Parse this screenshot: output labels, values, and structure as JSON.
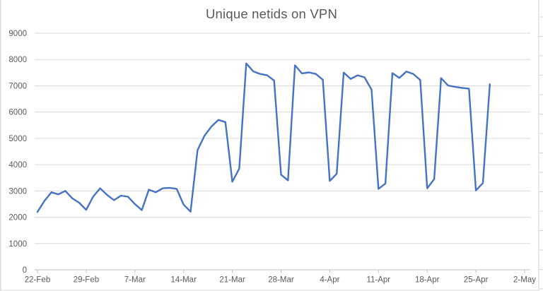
{
  "chart_data": {
    "type": "line",
    "title": "Unique netids on VPN",
    "legend": "none",
    "grid": "horizontal",
    "x_axis": {
      "tick_labels": [
        "22-Feb",
        "29-Feb",
        "7-Mar",
        "14-Mar",
        "21-Mar",
        "28-Mar",
        "4-Apr",
        "11-Apr",
        "18-Apr",
        "25-Apr",
        "2-May"
      ],
      "tick_day_indices": [
        0,
        7,
        14,
        21,
        28,
        35,
        42,
        49,
        56,
        63,
        70
      ],
      "interval_days": 7,
      "range_days": [
        0,
        70
      ]
    },
    "y_axis": {
      "tick_values": [
        0,
        1000,
        2000,
        3000,
        4000,
        5000,
        6000,
        7000,
        8000,
        9000
      ],
      "tick_labels": [
        "0",
        "1000",
        "2000",
        "3000",
        "4000",
        "5000",
        "6000",
        "7000",
        "8000",
        "9000"
      ],
      "min": 0,
      "max": 9000
    },
    "series": [
      {
        "name": "Unique netids on VPN",
        "color": "#4472C4",
        "dates": [
          "22-Feb",
          "23-Feb",
          "24-Feb",
          "25-Feb",
          "26-Feb",
          "27-Feb",
          "28-Feb",
          "29-Feb",
          "1-Mar",
          "2-Mar",
          "3-Mar",
          "4-Mar",
          "5-Mar",
          "6-Mar",
          "7-Mar",
          "8-Mar",
          "9-Mar",
          "10-Mar",
          "11-Mar",
          "12-Mar",
          "13-Mar",
          "14-Mar",
          "15-Mar",
          "16-Mar",
          "17-Mar",
          "18-Mar",
          "19-Mar",
          "20-Mar",
          "21-Mar",
          "22-Mar",
          "23-Mar",
          "24-Mar",
          "25-Mar",
          "26-Mar",
          "27-Mar",
          "28-Mar",
          "29-Mar",
          "30-Mar",
          "31-Mar",
          "1-Apr",
          "2-Apr",
          "3-Apr",
          "4-Apr",
          "5-Apr",
          "6-Apr",
          "7-Apr",
          "8-Apr",
          "9-Apr",
          "10-Apr",
          "11-Apr",
          "12-Apr",
          "13-Apr",
          "14-Apr",
          "15-Apr",
          "16-Apr",
          "17-Apr",
          "18-Apr",
          "19-Apr",
          "20-Apr",
          "21-Apr",
          "22-Apr",
          "23-Apr",
          "24-Apr",
          "25-Apr",
          "26-Apr",
          "27-Apr"
        ],
        "values": [
          2200,
          2620,
          2950,
          2870,
          3000,
          2720,
          2550,
          2280,
          2780,
          3100,
          2850,
          2650,
          2820,
          2780,
          2500,
          2270,
          3050,
          2950,
          3100,
          3120,
          3080,
          2480,
          2210,
          4550,
          5100,
          5450,
          5700,
          5620,
          3350,
          3850,
          7850,
          7550,
          7450,
          7400,
          7200,
          3620,
          3400,
          7780,
          7470,
          7510,
          7450,
          7230,
          3380,
          3650,
          7500,
          7260,
          7400,
          7320,
          6850,
          3080,
          3280,
          7480,
          7300,
          7540,
          7450,
          7220,
          3100,
          3450,
          7290,
          7010,
          6960,
          6920,
          6890,
          3020,
          3300,
          7060
        ]
      }
    ]
  },
  "colors": {
    "line": "#4472C4",
    "title_text": "#595959",
    "axis_text": "#595959",
    "gridline": "#DADADA",
    "axis_line": "#BFBFBF",
    "background": "#FFFFFF",
    "window_edge": "#D6D6D6"
  }
}
